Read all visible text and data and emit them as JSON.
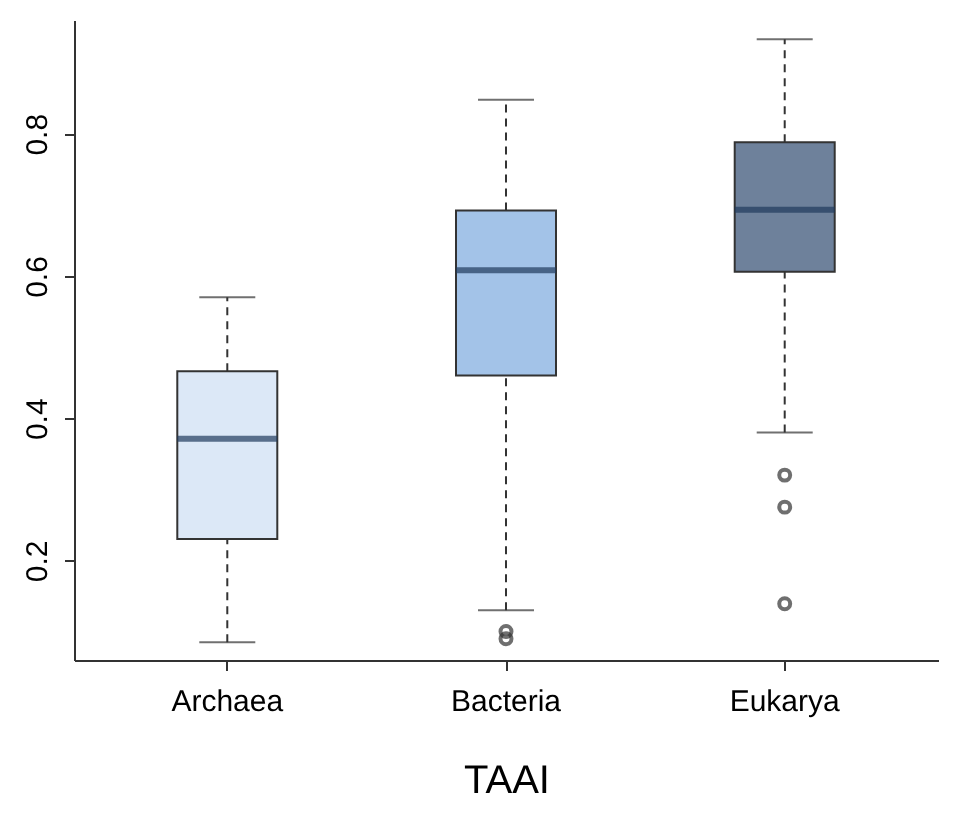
{
  "chart_data": {
    "type": "box",
    "xlabel": "TAAI",
    "categories": [
      "Archaea",
      "Bacteria",
      "Eukarya"
    ],
    "colors": [
      "#dce8f7",
      "#a3c3e8",
      "#6e819b"
    ],
    "boxes": [
      {
        "low": 0.085,
        "q1": 0.23,
        "median": 0.371,
        "q3": 0.466,
        "high": 0.57
      },
      {
        "low": 0.13,
        "q1": 0.46,
        "median": 0.608,
        "q3": 0.692,
        "high": 0.848,
        "outliers": [
          0.09,
          0.1
        ]
      },
      {
        "low": 0.38,
        "q1": 0.606,
        "median": 0.693,
        "q3": 0.788,
        "high": 0.933,
        "outliers": [
          0.32,
          0.275,
          0.139
        ]
      }
    ],
    "ylim": [
      0.06,
      0.96
    ],
    "yticks": [
      0.2,
      0.4,
      0.6,
      0.8
    ],
    "grid": false
  }
}
